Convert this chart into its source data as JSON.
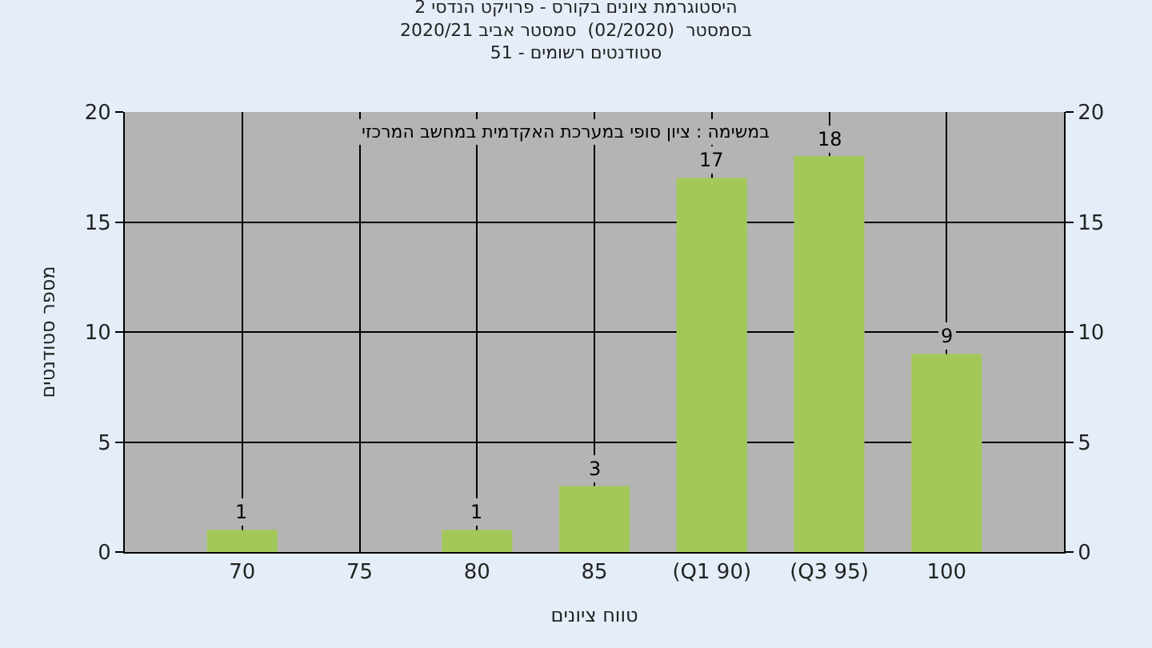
{
  "chart_data": {
    "type": "bar",
    "title": "היסטוגרמת ציונים בקורס - פרויקט הנדסי 2\nבסמסטר  (02/2020)  סמסטר אביב 2020/21\nסטודנטים רשומים - 51",
    "xlabel": "טווח ציונים",
    "ylabel": "מספר סטודנטים",
    "annotations": [
      "במשימה : ציון סופי במערכת האקדמית במחשב המרכזי"
    ],
    "categories": [
      "70",
      "75",
      "80",
      "85",
      "(Q1 90)",
      "(Q3 95)",
      "100"
    ],
    "values": [
      1,
      0,
      1,
      3,
      17,
      18,
      9
    ],
    "value_labels": [
      "1",
      null,
      "1",
      "3",
      "17",
      "18",
      "9"
    ],
    "color": "#a2c85a",
    "ylim": [
      0,
      20
    ],
    "yticks": [
      0,
      5,
      10,
      15,
      20
    ],
    "y2lim": [
      0,
      20
    ],
    "y2ticks": [
      0,
      5,
      10,
      15,
      20
    ],
    "grid": true
  }
}
